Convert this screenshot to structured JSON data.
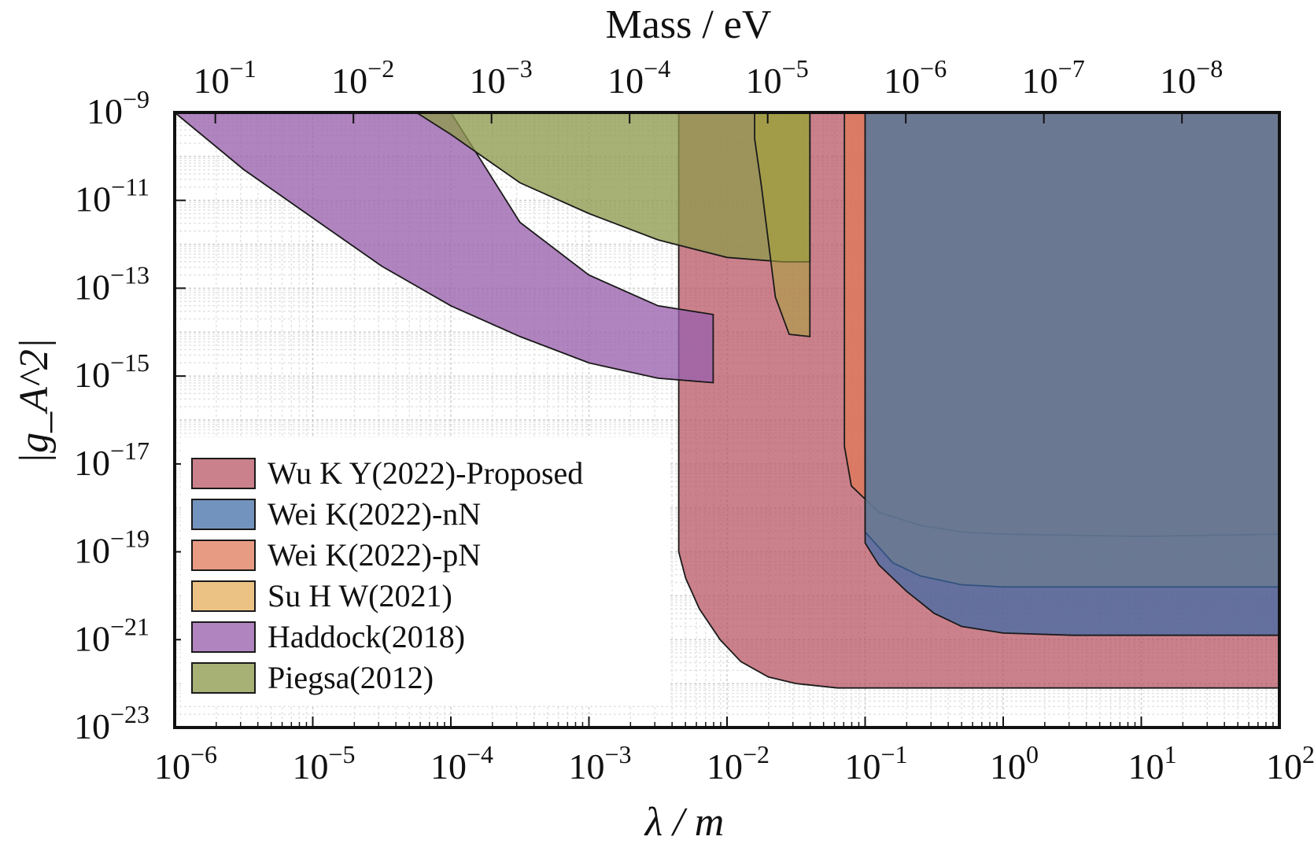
{
  "chart_data": {
    "type": "area",
    "title": "",
    "xlabel": "λ / m",
    "ylabel": "|g_A^2|",
    "top_xlabel": "Mass / eV",
    "x_scale": "log",
    "y_scale": "log",
    "xlim": [
      1e-06,
      100
    ],
    "ylim": [
      1e-23,
      1e-09
    ],
    "grid": true,
    "legend_placement": "lower-left",
    "x_ticks": [
      {
        "base": "10",
        "exp": "−6",
        "value": 1e-06
      },
      {
        "base": "10",
        "exp": "−5",
        "value": 1e-05
      },
      {
        "base": "10",
        "exp": "−4",
        "value": 0.0001
      },
      {
        "base": "10",
        "exp": "−3",
        "value": 0.001
      },
      {
        "base": "10",
        "exp": "−2",
        "value": 0.01
      },
      {
        "base": "10",
        "exp": "−1",
        "value": 0.1
      },
      {
        "base": "10",
        "exp": "0",
        "value": 1
      },
      {
        "base": "10",
        "exp": "1",
        "value": 10
      },
      {
        "base": "10",
        "exp": "2",
        "value": 100
      }
    ],
    "top_ticks": [
      {
        "base": "10",
        "exp": "−1",
        "mass_eV": 0.1
      },
      {
        "base": "10",
        "exp": "−2",
        "mass_eV": 0.01
      },
      {
        "base": "10",
        "exp": "−3",
        "mass_eV": 0.001
      },
      {
        "base": "10",
        "exp": "−4",
        "mass_eV": 0.0001
      },
      {
        "base": "10",
        "exp": "−5",
        "mass_eV": 1e-05
      },
      {
        "base": "10",
        "exp": "−6",
        "mass_eV": 1e-06
      },
      {
        "base": "10",
        "exp": "−7",
        "mass_eV": 1e-07
      },
      {
        "base": "10",
        "exp": "−8",
        "mass_eV": 1e-08
      }
    ],
    "y_ticks": [
      {
        "base": "10",
        "exp": "−9",
        "value": 1e-09
      },
      {
        "base": "10",
        "exp": "−11",
        "value": 1e-11
      },
      {
        "base": "10",
        "exp": "−13",
        "value": 1e-13
      },
      {
        "base": "10",
        "exp": "−15",
        "value": 1e-15
      },
      {
        "base": "10",
        "exp": "−17",
        "value": 1e-17
      },
      {
        "base": "10",
        "exp": "−19",
        "value": 1e-19
      },
      {
        "base": "10",
        "exp": "−21",
        "value": 1e-21
      },
      {
        "base": "10",
        "exp": "−23",
        "value": 1e-23
      }
    ],
    "series": [
      {
        "name": "Wu K Y(2022)-Proposed",
        "color": "#b7505e",
        "opacity": 0.72,
        "boundary_log": [
          [
            -2.35,
            -19.0
          ],
          [
            -2.3,
            -19.6
          ],
          [
            -2.2,
            -20.3
          ],
          [
            -2.05,
            -21.0
          ],
          [
            -1.9,
            -21.5
          ],
          [
            -1.7,
            -21.85
          ],
          [
            -1.5,
            -22.0
          ],
          [
            -1.2,
            -22.1
          ],
          [
            -0.8,
            -22.1
          ],
          [
            0,
            -22.1
          ],
          [
            1,
            -22.1
          ],
          [
            2,
            -22.1
          ]
        ],
        "x_start_log": -2.35
      },
      {
        "name": "Wei K(2022)-nN",
        "color": "#3d6aa6",
        "opacity": 0.72,
        "boundary_log": [
          [
            -1.0,
            -18.6
          ],
          [
            -1.0,
            -18.8
          ],
          [
            -0.9,
            -19.3
          ],
          [
            -0.7,
            -19.9
          ],
          [
            -0.5,
            -20.4
          ],
          [
            -0.3,
            -20.7
          ],
          [
            0,
            -20.85
          ],
          [
            0.5,
            -20.9
          ],
          [
            1,
            -20.9
          ],
          [
            2,
            -20.9
          ]
        ],
        "x_start_log": -1.0
      },
      {
        "name": "Wei K(2022)-pN",
        "color": "#e07a5a",
        "opacity": 0.75,
        "boundary_log": [
          [
            -1.15,
            -16.6
          ],
          [
            -1.1,
            -17.5
          ],
          [
            -0.9,
            -18.1
          ],
          [
            -0.6,
            -18.4
          ],
          [
            -0.3,
            -18.55
          ],
          [
            0,
            -18.6
          ],
          [
            1,
            -18.65
          ],
          [
            2,
            -18.6
          ]
        ],
        "x_start_log": -1.15
      },
      {
        "name": "Su H W(2021)",
        "color": "#e5aa55",
        "opacity": 0.72,
        "boundary_log": [
          [
            -1.0,
            -9.0
          ],
          [
            -1.0,
            -18.55
          ],
          [
            -0.8,
            -19.25
          ],
          [
            -0.6,
            -19.55
          ],
          [
            -0.3,
            -19.75
          ],
          [
            0,
            -19.8
          ],
          [
            1,
            -19.8
          ],
          [
            2,
            -19.8
          ]
        ],
        "x_start_log": -1.0
      },
      {
        "name": "Haddock(2018)",
        "color": "#9a62ad",
        "opacity": 0.78,
        "upper_log": [
          [
            -6.0,
            -9.0
          ],
          [
            -4.0,
            -9.0
          ],
          [
            -3.5,
            -11.5
          ],
          [
            -3.0,
            -12.7
          ],
          [
            -2.5,
            -13.4
          ],
          [
            -2.1,
            -13.6
          ]
        ],
        "lower_log": [
          [
            -6.0,
            -9.0
          ],
          [
            -5.5,
            -10.3
          ],
          [
            -5.0,
            -11.4
          ],
          [
            -4.5,
            -12.5
          ],
          [
            -4.0,
            -13.4
          ],
          [
            -3.5,
            -14.1
          ],
          [
            -3.0,
            -14.7
          ],
          [
            -2.5,
            -15.05
          ],
          [
            -2.1,
            -15.15
          ]
        ],
        "x_end_log": -2.1
      },
      {
        "name": "Piegsa(2012)",
        "color": "#8e9a4e",
        "opacity": 0.78,
        "lower_log": [
          [
            -4.25,
            -9.0
          ],
          [
            -4.0,
            -9.5
          ],
          [
            -3.5,
            -10.6
          ],
          [
            -3.0,
            -11.3
          ],
          [
            -2.5,
            -11.9
          ],
          [
            -2.0,
            -12.3
          ],
          [
            -1.6,
            -12.4
          ],
          [
            -1.4,
            -12.4
          ]
        ],
        "x_end_log": -1.4
      }
    ],
    "extra_band": {
      "color": "#a8a23a",
      "opacity": 0.55,
      "points_log": [
        [
          -1.8,
          -9.0
        ],
        [
          -1.4,
          -9.0
        ],
        [
          -1.4,
          -14.1
        ],
        [
          -1.55,
          -14.05
        ],
        [
          -1.65,
          -13.2
        ],
        [
          -1.75,
          -10.7
        ],
        [
          -1.8,
          -9.6
        ]
      ]
    }
  }
}
